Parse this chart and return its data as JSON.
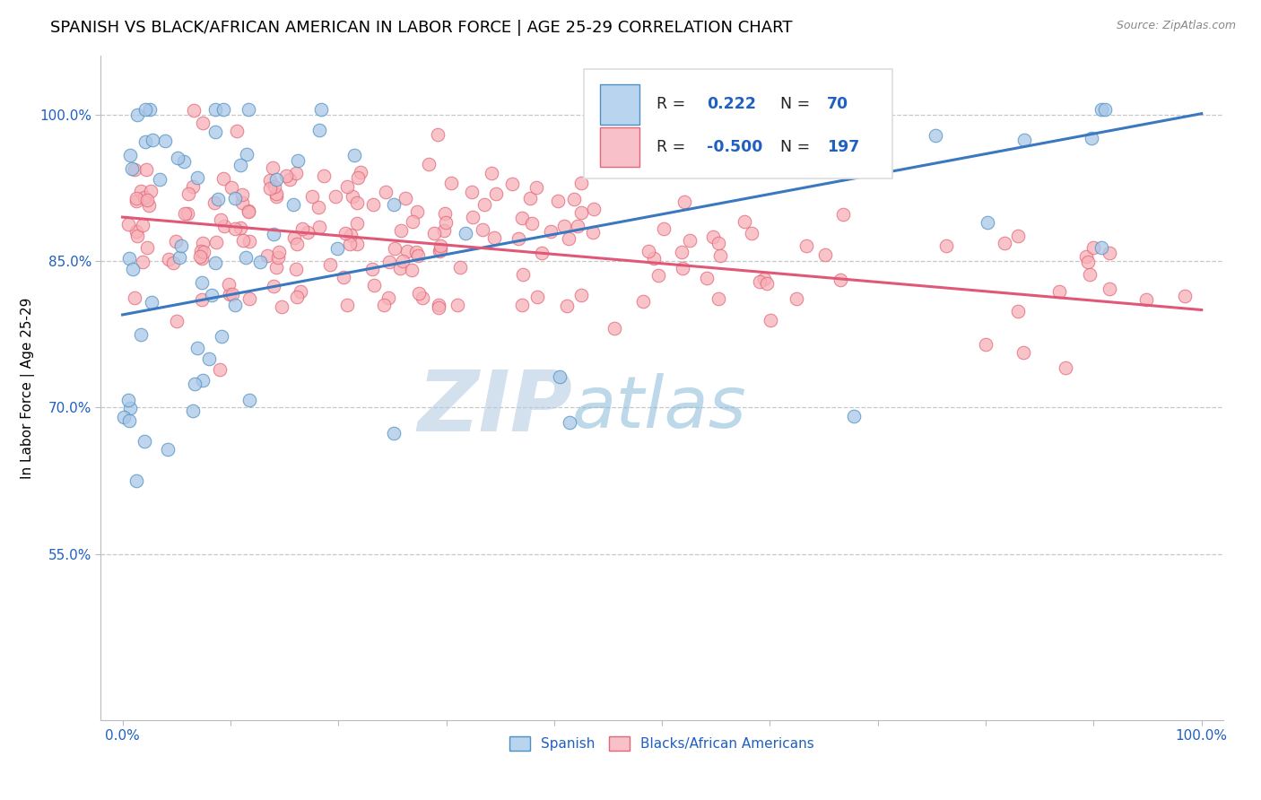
{
  "title": "SPANISH VS BLACK/AFRICAN AMERICAN IN LABOR FORCE | AGE 25-29 CORRELATION CHART",
  "source_text": "Source: ZipAtlas.com",
  "ylabel": "In Labor Force | Age 25-29",
  "xlim": [
    -0.02,
    1.02
  ],
  "ylim": [
    0.38,
    1.06
  ],
  "ytick_positions": [
    0.55,
    0.7,
    0.85,
    1.0
  ],
  "ytick_labels": [
    "55.0%",
    "70.0%",
    "85.0%",
    "100.0%"
  ],
  "title_fontsize": 13,
  "axis_label_fontsize": 11,
  "tick_fontsize": 11,
  "background_color": "#ffffff",
  "grid_color": "#c8c8c8",
  "watermark_text1": "ZIP",
  "watermark_text2": "atlas",
  "watermark_color1": "#b0c8e0",
  "watermark_color2": "#85b8d8",
  "watermark_alpha": 0.55,
  "blue_fill": "#a8c8e8",
  "blue_edge": "#5090c0",
  "pink_fill": "#f8b0b8",
  "pink_edge": "#e06878",
  "blue_line_color": "#3a78c0",
  "pink_line_color": "#e05878",
  "legend_text_color": "#2060c0",
  "legend_R_blue": "0.222",
  "legend_N_blue": "70",
  "legend_R_pink": "-0.500",
  "legend_N_pink": "197",
  "source_color": "#888888"
}
